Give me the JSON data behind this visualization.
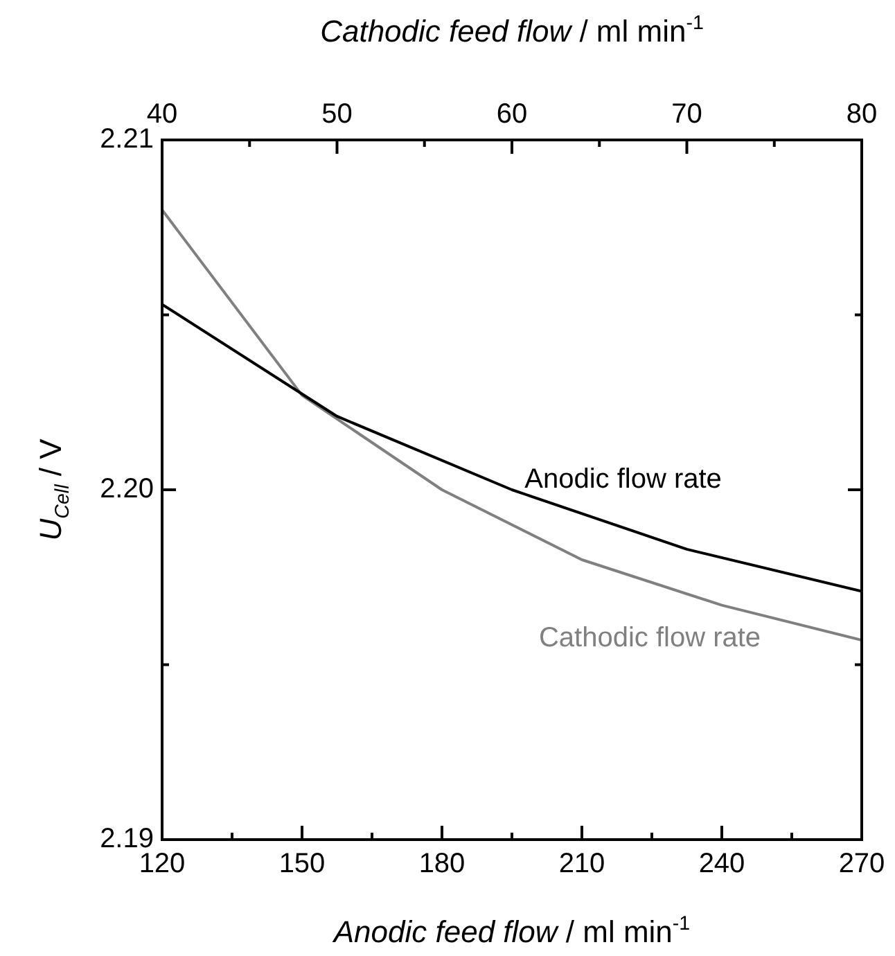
{
  "chart_data": {
    "type": "line",
    "xlabel": "Anodic feed flow / ml min$^{-1}$",
    "x2label": "Cathodic feed flow / ml min$^{-1}$",
    "ylabel": "U$_{Cell}$ / V",
    "xlim": [
      120,
      270
    ],
    "xticks": [
      120,
      {
        "value": 135,
        "label": null
      },
      150,
      {
        "value": 165,
        "label": null
      },
      180,
      {
        "value": 195,
        "label": null
      },
      210,
      {
        "value": 225,
        "label": null
      },
      240,
      {
        "value": 255,
        "label": null
      },
      270
    ],
    "x2lim": [
      40,
      80
    ],
    "x2ticks": [
      40,
      {
        "value": 45,
        "label": null
      },
      50,
      {
        "value": 55,
        "label": null
      },
      60,
      {
        "value": 65,
        "label": null
      },
      70,
      {
        "value": 75,
        "label": null
      },
      80
    ],
    "ylim": [
      2.19,
      2.21
    ],
    "yticks": [
      2.19,
      {
        "value": 2.195,
        "label": null
      },
      {
        "value": 2.2,
        "label": "2.20"
      },
      {
        "value": 2.205,
        "label": null
      },
      2.21
    ],
    "marker": "none",
    "series": [
      {
        "name": "Anodic flow rate",
        "color": "#000000",
        "x": [
          120,
          157.5,
          195,
          232.5,
          270
        ],
        "values": [
          2.2053,
          2.2021,
          2.2,
          2.1983,
          2.1971
        ]
      },
      {
        "name": "Cathodic flow rate",
        "color": "#808080",
        "axis": "x2",
        "x": [
          40,
          48,
          56,
          64,
          72,
          80
        ],
        "values": [
          2.208,
          2.2027,
          2.2,
          2.198,
          2.1967,
          2.1957
        ]
      }
    ]
  }
}
